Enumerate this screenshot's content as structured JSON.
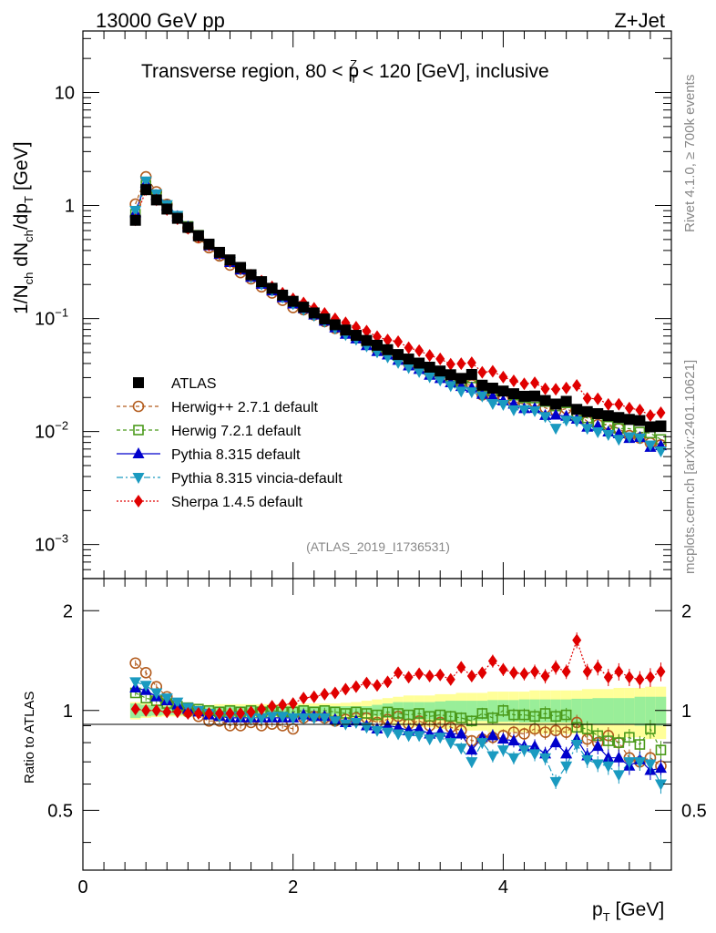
{
  "header": {
    "energy_label": "13000 GeV pp",
    "process_label": "Z+Jet",
    "region_text": "Transverse region, 80 < p",
    "region_super": "Z",
    "region_sub": "T",
    "region_tail": " < 120 [GeV], inclusive",
    "analysis_id": "(ATLAS_2019_I1736531)",
    "side_rivet": "Rivet 4.1.0, ≥ 700k events",
    "side_mcplots": "mcplots.cern.ch [arXiv:2401.10621]"
  },
  "axes": {
    "ylabel_main": "1/N",
    "ylabel_sub1": "ch",
    "ylabel_mid": " dN",
    "ylabel_sub2": "ch",
    "ylabel_mid2": "/dp",
    "ylabel_sub3": "T",
    "ylabel_tail": " [GeV]",
    "ylabel_ratio": "Ratio to ATLAS",
    "xlabel_main": "p",
    "xlabel_sub": "T",
    "xlabel_tail": " [GeV]",
    "main_ticks": [
      {
        "base": "10",
        "exp": "",
        "v": 10
      },
      {
        "base": "1",
        "exp": "",
        "v": 1
      },
      {
        "base": "10",
        "exp": "−1",
        "v": 0.1
      },
      {
        "base": "10",
        "exp": "−2",
        "v": 0.01
      },
      {
        "base": "10",
        "exp": "−3",
        "v": 0.001
      }
    ],
    "ratio_ticks": [
      {
        "label": "2",
        "v": 2
      },
      {
        "label": "1",
        "v": 1
      },
      {
        "label": "0.5",
        "v": 0.5
      }
    ],
    "x_ticks": [
      {
        "label": "0",
        "v": 0
      },
      {
        "label": "2",
        "v": 2
      },
      {
        "label": "4",
        "v": 4
      }
    ]
  },
  "legend": [
    {
      "label": "ATLAS",
      "color": "#000000",
      "marker": "square",
      "dash": ""
    },
    {
      "label": "Herwig++ 2.7.1 default",
      "color": "#b35c1e",
      "marker": "circle-open",
      "dash": "4,3"
    },
    {
      "label": "Herwig 7.2.1 default",
      "color": "#4a9a1a",
      "marker": "square-open",
      "dash": "4,3"
    },
    {
      "label": "Pythia 8.315 default",
      "color": "#0000cc",
      "marker": "triangle-up",
      "dash": ""
    },
    {
      "label": "Pythia 8.315 vincia-default",
      "color": "#1a9ac0",
      "marker": "triangle-down",
      "dash": "7,3,2,3"
    },
    {
      "label": "Sherpa 1.4.5 default",
      "color": "#e00000",
      "marker": "diamond",
      "dash": "2,2"
    }
  ],
  "chart_data": {
    "type": "scatter",
    "title": "Transverse region, 80 < pT(Z) < 120 [GeV], inclusive",
    "xlabel": "pT [GeV]",
    "ylabel": "1/Nch dNch/dpT [GeV]",
    "ylabel_ratio": "Ratio to ATLAS",
    "xlim": [
      0,
      5.6
    ],
    "ylim": [
      0.0005,
      35
    ],
    "yscale": "log",
    "ratio_ylim": [
      0.33,
      2.5
    ],
    "x": [
      0.5,
      0.6,
      0.7,
      0.8,
      0.9,
      1.0,
      1.1,
      1.2,
      1.3,
      1.4,
      1.5,
      1.6,
      1.7,
      1.8,
      1.9,
      2.0,
      2.1,
      2.2,
      2.3,
      2.4,
      2.5,
      2.6,
      2.7,
      2.8,
      2.9,
      3.0,
      3.1,
      3.2,
      3.3,
      3.4,
      3.5,
      3.6,
      3.7,
      3.8,
      3.9,
      4.0,
      4.1,
      4.2,
      4.3,
      4.4,
      4.5,
      4.6,
      4.7,
      4.8,
      4.9,
      5.0,
      5.1,
      5.2,
      5.3,
      5.4,
      5.5
    ],
    "atlas": {
      "name": "ATLAS",
      "values": [
        0.74,
        1.38,
        1.12,
        0.93,
        0.77,
        0.64,
        0.54,
        0.455,
        0.385,
        0.33,
        0.283,
        0.244,
        0.212,
        0.185,
        0.161,
        0.142,
        0.126,
        0.112,
        0.099,
        0.088,
        0.079,
        0.071,
        0.064,
        0.058,
        0.053,
        0.048,
        0.0438,
        0.0403,
        0.0371,
        0.0343,
        0.0318,
        0.0295,
        0.032,
        0.0257,
        0.0242,
        0.0228,
        0.0216,
        0.0205,
        0.0206,
        0.0188,
        0.0175,
        0.0185,
        0.0157,
        0.015,
        0.0144,
        0.0138,
        0.0133,
        0.0128,
        0.0125,
        0.011,
        0.0112
      ],
      "band_inner": [
        0.05,
        0.04,
        0.035,
        0.03,
        0.03,
        0.03,
        0.03,
        0.03,
        0.03,
        0.03,
        0.03,
        0.03,
        0.03,
        0.03,
        0.03,
        0.03,
        0.03,
        0.03,
        0.03,
        0.03,
        0.03,
        0.03,
        0.03,
        0.04,
        0.05,
        0.06,
        0.06,
        0.06,
        0.06,
        0.065,
        0.07,
        0.07,
        0.07,
        0.07,
        0.075,
        0.075,
        0.075,
        0.08,
        0.08,
        0.08,
        0.08,
        0.08,
        0.085,
        0.085,
        0.09,
        0.09,
        0.09,
        0.09,
        0.1,
        0.1,
        0.1
      ],
      "band_outer": [
        0.06,
        0.05,
        0.045,
        0.04,
        0.04,
        0.04,
        0.04,
        0.04,
        0.045,
        0.045,
        0.045,
        0.045,
        0.045,
        0.045,
        0.045,
        0.045,
        0.05,
        0.05,
        0.05,
        0.05,
        0.055,
        0.06,
        0.07,
        0.08,
        0.09,
        0.1,
        0.11,
        0.11,
        0.11,
        0.12,
        0.12,
        0.13,
        0.13,
        0.13,
        0.14,
        0.14,
        0.14,
        0.14,
        0.15,
        0.15,
        0.15,
        0.15,
        0.15,
        0.16,
        0.16,
        0.16,
        0.17,
        0.17,
        0.17,
        0.18,
        0.18
      ]
    },
    "series": [
      {
        "name": "Herwig++ 2.7.1 default",
        "ratio": [
          1.39,
          1.3,
          1.18,
          1.1,
          1.04,
          0.99,
          0.96,
          0.93,
          0.93,
          0.9,
          0.9,
          0.92,
          0.9,
          0.91,
          0.9,
          0.88,
          0.95,
          0.96,
          0.95,
          0.93,
          0.94,
          0.95,
          0.95,
          0.92,
          0.94,
          0.96,
          0.91,
          0.93,
          0.9,
          0.92,
          0.89,
          0.87,
          0.81,
          0.82,
          0.83,
          0.84,
          0.86,
          0.85,
          0.88,
          0.86,
          0.87,
          0.86,
          0.92,
          0.82,
          0.8,
          0.84,
          0.8,
          0.72,
          0.7,
          0.72,
          0.68
        ]
      },
      {
        "name": "Herwig 7.2.1 default",
        "ratio": [
          1.13,
          1.09,
          1.07,
          1.05,
          1.03,
          1.02,
          1.01,
          1.0,
          0.99,
          1.0,
          0.99,
          1.0,
          0.99,
          1.0,
          0.99,
          0.99,
          1.0,
          0.99,
          1.0,
          0.99,
          0.98,
          0.99,
          0.98,
          0.97,
          0.99,
          0.98,
          0.97,
          0.98,
          0.96,
          0.97,
          0.96,
          0.95,
          0.93,
          0.98,
          0.95,
          1.0,
          0.97,
          0.97,
          0.96,
          0.98,
          0.96,
          0.97,
          0.89,
          0.88,
          0.84,
          0.81,
          0.8,
          0.83,
          0.79,
          0.88,
          0.76
        ]
      },
      {
        "name": "Pythia 8.315 default",
        "ratio": [
          1.17,
          1.15,
          1.1,
          1.07,
          1.04,
          1.01,
          0.99,
          0.97,
          0.96,
          0.95,
          0.95,
          0.95,
          0.95,
          0.95,
          0.95,
          0.95,
          0.97,
          0.96,
          0.96,
          0.94,
          0.92,
          0.93,
          0.9,
          0.88,
          0.9,
          0.89,
          0.87,
          0.88,
          0.85,
          0.86,
          0.85,
          0.85,
          0.76,
          0.83,
          0.84,
          0.82,
          0.81,
          0.78,
          0.78,
          0.74,
          0.8,
          0.74,
          0.82,
          0.73,
          0.78,
          0.72,
          0.72,
          0.68,
          0.71,
          0.66,
          0.67
        ]
      },
      {
        "name": "Pythia 8.315 vincia-default",
        "ratio": [
          1.22,
          1.19,
          1.13,
          1.09,
          1.06,
          1.02,
          1.0,
          0.98,
          0.96,
          0.96,
          0.96,
          0.95,
          0.95,
          0.96,
          0.96,
          0.95,
          0.95,
          0.95,
          0.95,
          0.93,
          0.91,
          0.92,
          0.89,
          0.87,
          0.86,
          0.85,
          0.84,
          0.84,
          0.82,
          0.83,
          0.8,
          0.77,
          0.7,
          0.8,
          0.73,
          0.76,
          0.72,
          0.76,
          0.74,
          0.72,
          0.61,
          0.68,
          0.79,
          0.71,
          0.69,
          0.68,
          0.64,
          0.7,
          0.7,
          0.69,
          0.6
        ]
      },
      {
        "name": "Sherpa 1.4.5 default",
        "ratio": [
          1.01,
          1.0,
          1.0,
          0.99,
          0.99,
          0.98,
          0.98,
          0.98,
          0.98,
          0.98,
          0.98,
          0.99,
          1.01,
          1.03,
          1.04,
          1.05,
          1.09,
          1.1,
          1.12,
          1.13,
          1.16,
          1.18,
          1.21,
          1.19,
          1.22,
          1.3,
          1.26,
          1.29,
          1.27,
          1.28,
          1.24,
          1.35,
          1.27,
          1.3,
          1.41,
          1.33,
          1.3,
          1.29,
          1.31,
          1.27,
          1.35,
          1.31,
          1.63,
          1.31,
          1.35,
          1.26,
          1.31,
          1.26,
          1.24,
          1.26,
          1.31
        ]
      }
    ],
    "ratio_err": [
      0.02,
      0.02,
      0.02,
      0.02,
      0.02,
      0.02,
      0.02,
      0.02,
      0.02,
      0.02,
      0.02,
      0.02,
      0.02,
      0.02,
      0.02,
      0.02,
      0.02,
      0.02,
      0.02,
      0.025,
      0.025,
      0.025,
      0.03,
      0.03,
      0.03,
      0.03,
      0.035,
      0.035,
      0.035,
      0.035,
      0.04,
      0.04,
      0.04,
      0.04,
      0.045,
      0.045,
      0.045,
      0.045,
      0.05,
      0.05,
      0.05,
      0.05,
      0.055,
      0.055,
      0.055,
      0.06,
      0.06,
      0.06,
      0.06,
      0.065,
      0.065
    ]
  }
}
